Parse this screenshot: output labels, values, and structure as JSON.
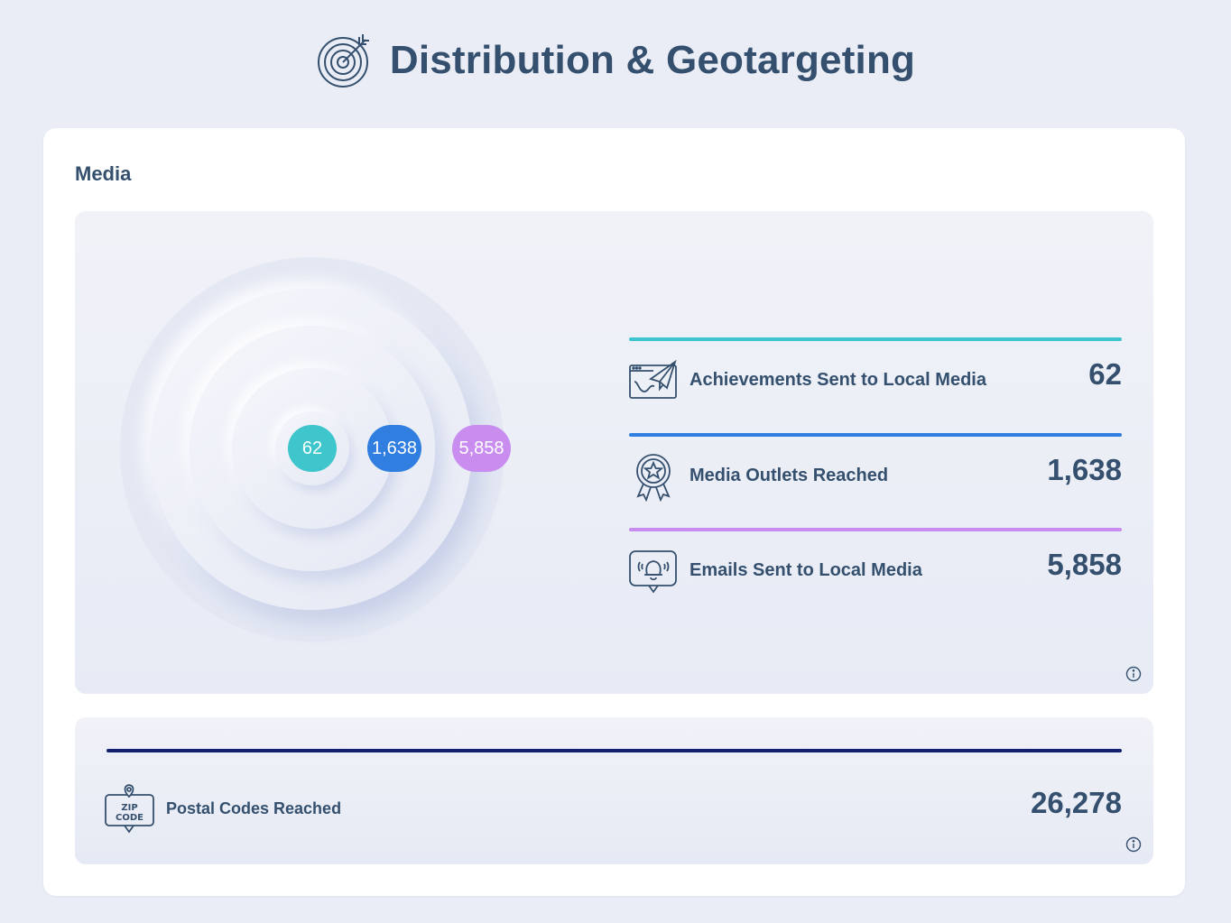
{
  "header": {
    "title": "Distribution & Geotargeting",
    "icon": "target-icon"
  },
  "media": {
    "section_title": "Media",
    "bubbles": [
      "62",
      "1,638",
      "5,858"
    ],
    "stats": [
      {
        "label": "Achievements Sent to Local Media",
        "value": "62",
        "color": "#3fc6cc",
        "icon": "paper-plane-browser-icon"
      },
      {
        "label": "Media Outlets Reached",
        "value": "1,638",
        "color": "#2f7ee0",
        "icon": "award-badge-icon"
      },
      {
        "label": "Emails Sent to Local Media",
        "value": "5,858",
        "color": "#c98df0",
        "icon": "notification-bell-icon"
      }
    ]
  },
  "postal": {
    "label": "Postal Codes Reached",
    "value": "26,278",
    "zip_top": "ZIP",
    "zip_bottom": "CODE",
    "color": "#14206e",
    "icon": "zip-code-icon"
  }
}
